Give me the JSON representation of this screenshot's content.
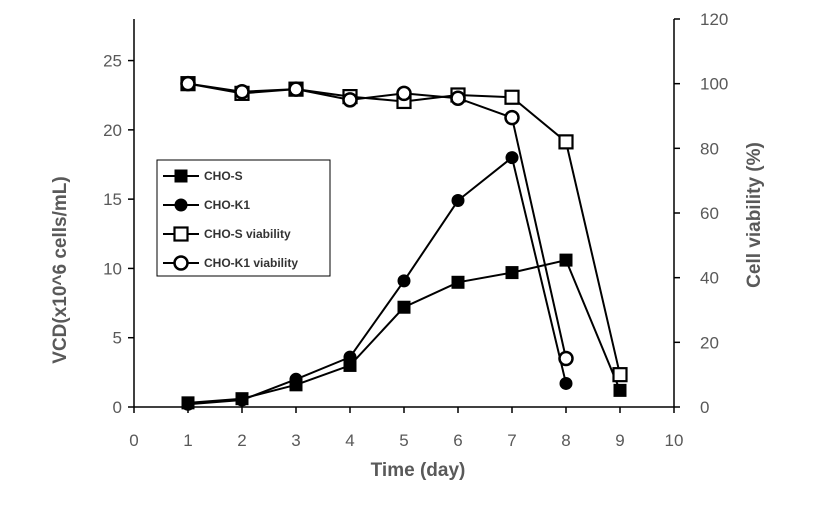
{
  "chart_data": {
    "type": "line",
    "xlabel": "Time (day)",
    "ylabel": "VCD(x10^6 cells/mL)",
    "y2label": "Cell viability (%)",
    "xlim": [
      0,
      10
    ],
    "ylim": [
      0,
      28
    ],
    "y2lim": [
      0,
      120
    ],
    "x_ticks": [
      "0",
      "1",
      "2",
      "3",
      "4",
      "5",
      "6",
      "7",
      "8",
      "9",
      "10"
    ],
    "y_ticks": [
      "0",
      "5",
      "10",
      "15",
      "20",
      "25"
    ],
    "y2_ticks": [
      "0",
      "20",
      "40",
      "60",
      "80",
      "100",
      "120"
    ],
    "grid": false,
    "legend_position": "left-center",
    "colors": {
      "axis": "#000000",
      "text": "#595959",
      "series": "#000000"
    },
    "series": [
      {
        "name": "CHO-S",
        "axis": "left",
        "marker": "square-filled",
        "x": [
          1,
          2,
          3,
          4,
          5,
          6,
          7,
          8,
          9
        ],
        "y": [
          0.3,
          0.6,
          1.6,
          3.0,
          7.2,
          9.0,
          9.7,
          10.6,
          1.2
        ]
      },
      {
        "name": "CHO-K1",
        "axis": "left",
        "marker": "circle-filled",
        "x": [
          1,
          2,
          3,
          4,
          5,
          6,
          7,
          8
        ],
        "y": [
          0.2,
          0.5,
          2.0,
          3.6,
          9.1,
          14.9,
          18.0,
          1.7
        ]
      },
      {
        "name": "CHO-S  viability",
        "axis": "right",
        "marker": "square-open",
        "x": [
          1,
          2,
          3,
          4,
          5,
          6,
          7,
          8,
          9
        ],
        "y": [
          100.0,
          97.0,
          98.3,
          96.0,
          94.5,
          96.5,
          95.8,
          82.0,
          10.0
        ]
      },
      {
        "name": "CHO-K1  viability",
        "axis": "right",
        "marker": "circle-open",
        "x": [
          1,
          2,
          3,
          4,
          5,
          6,
          7,
          8
        ],
        "y": [
          100.0,
          97.5,
          98.3,
          95.0,
          97.0,
          95.5,
          89.5,
          15.0
        ]
      }
    ]
  }
}
